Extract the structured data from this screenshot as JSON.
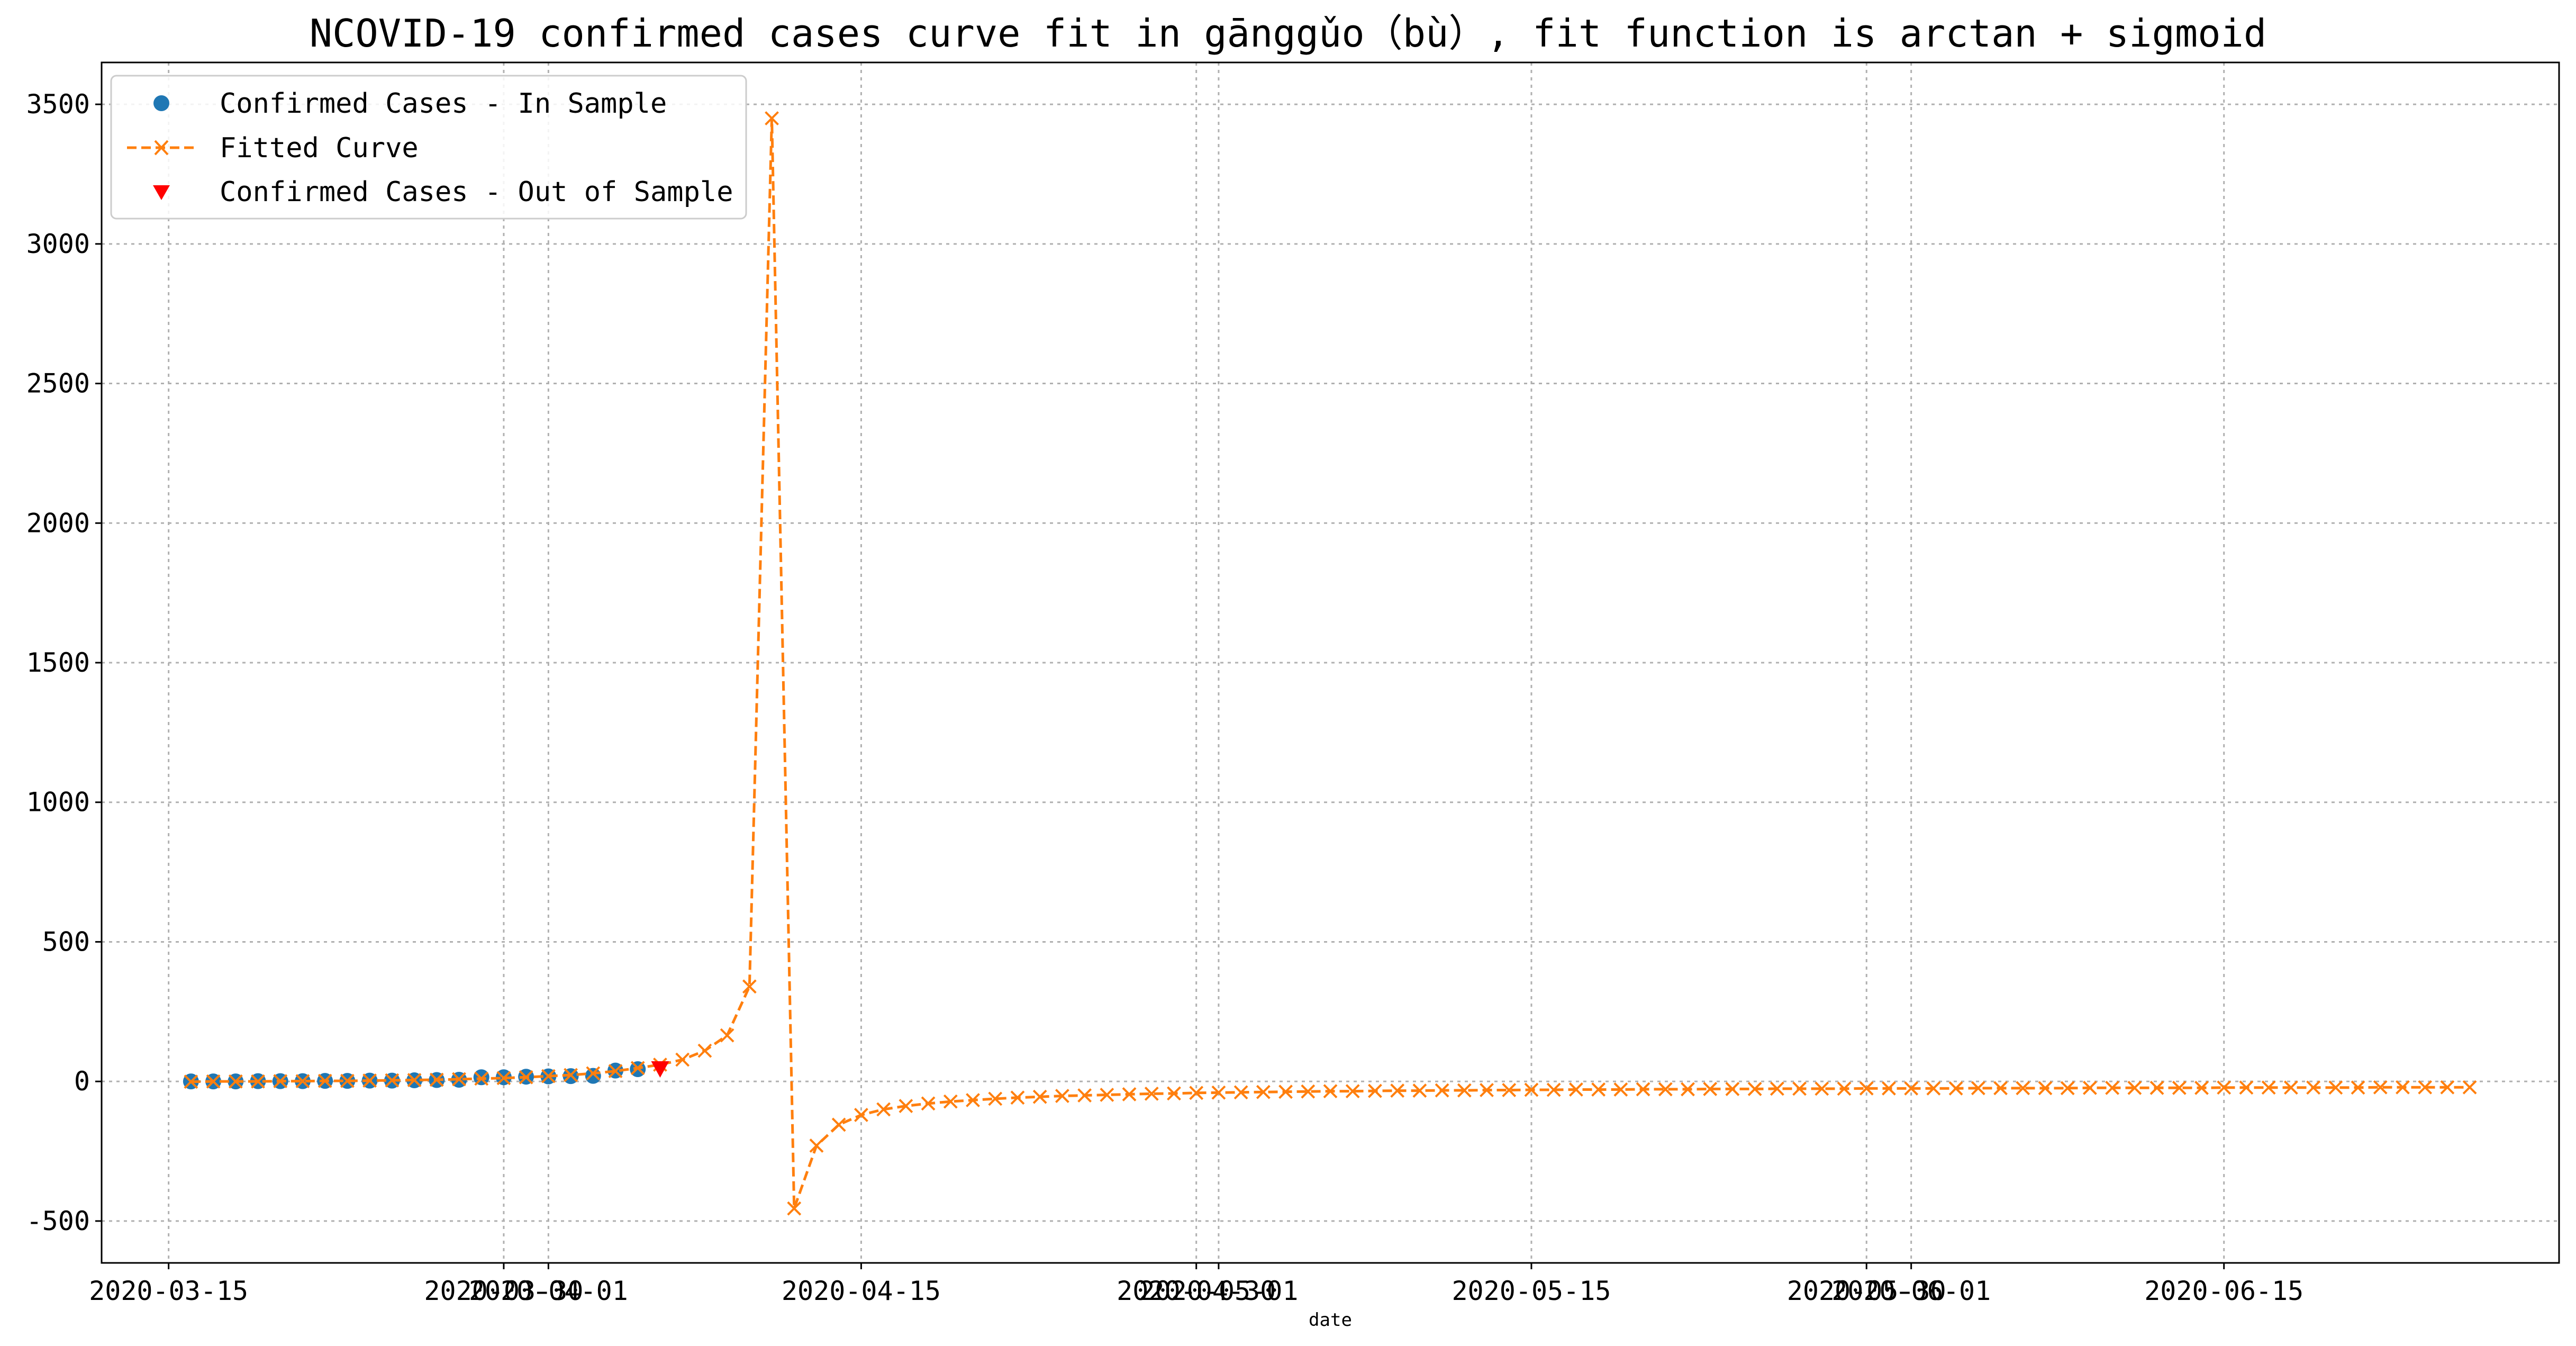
{
  "chart_data": {
    "type": "line",
    "title": "NCOVID-19 confirmed cases curve fit in gānggǔo（bù）, fit function is arctan + sigmoid",
    "xlabel": "date",
    "ylabel": "",
    "x_axis_type": "date",
    "xlim": [
      "2020-03-12",
      "2020-06-30"
    ],
    "ylim": [
      -650,
      3650
    ],
    "grid": true,
    "legend_position": "top-left",
    "y_ticks": [
      -500,
      0,
      500,
      1000,
      1500,
      2000,
      2500,
      3000,
      3500
    ],
    "x_ticks": [
      {
        "date": "2020-03-15",
        "label": "2020-03-15"
      },
      {
        "date": "2020-03-30",
        "label": "2020-03-30"
      },
      {
        "date": "2020-04-01",
        "label": "2020-04-01"
      },
      {
        "date": "2020-04-15",
        "label": "2020-04-15"
      },
      {
        "date": "2020-04-30",
        "label": "2020-04-30"
      },
      {
        "date": "2020-05-01",
        "label": "2020-05-01"
      },
      {
        "date": "2020-05-15",
        "label": "2020-05-15"
      },
      {
        "date": "2020-05-30",
        "label": "2020-05-30"
      },
      {
        "date": "2020-06-01",
        "label": "2020-06-01"
      },
      {
        "date": "2020-06-15",
        "label": "2020-06-15"
      }
    ],
    "series": [
      {
        "name": "Confirmed Cases - In Sample",
        "style": "circle-marker",
        "color": "#1f77b4",
        "points": [
          [
            "2020-03-16",
            0
          ],
          [
            "2020-03-17",
            0
          ],
          [
            "2020-03-18",
            0
          ],
          [
            "2020-03-19",
            1
          ],
          [
            "2020-03-20",
            1
          ],
          [
            "2020-03-21",
            1
          ],
          [
            "2020-03-22",
            2
          ],
          [
            "2020-03-23",
            2
          ],
          [
            "2020-03-24",
            3
          ],
          [
            "2020-03-25",
            3
          ],
          [
            "2020-03-26",
            4
          ],
          [
            "2020-03-27",
            5
          ],
          [
            "2020-03-28",
            6
          ],
          [
            "2020-03-29",
            15
          ],
          [
            "2020-03-30",
            15
          ],
          [
            "2020-03-31",
            17
          ],
          [
            "2020-04-01",
            18
          ],
          [
            "2020-04-02",
            19
          ],
          [
            "2020-04-03",
            20
          ],
          [
            "2020-04-04",
            39
          ],
          [
            "2020-04-05",
            44
          ]
        ]
      },
      {
        "name": "Fitted Curve",
        "style": "dashed-line-x-marker",
        "color": "#ff7f0e",
        "points": [
          [
            "2020-03-16",
            -1
          ],
          [
            "2020-03-17",
            0
          ],
          [
            "2020-03-18",
            0
          ],
          [
            "2020-03-19",
            0
          ],
          [
            "2020-03-20",
            1
          ],
          [
            "2020-03-21",
            1
          ],
          [
            "2020-03-22",
            2
          ],
          [
            "2020-03-23",
            2
          ],
          [
            "2020-03-24",
            3
          ],
          [
            "2020-03-25",
            4
          ],
          [
            "2020-03-26",
            5
          ],
          [
            "2020-03-27",
            6
          ],
          [
            "2020-03-28",
            8
          ],
          [
            "2020-03-29",
            10
          ],
          [
            "2020-03-30",
            12
          ],
          [
            "2020-03-31",
            15
          ],
          [
            "2020-04-01",
            19
          ],
          [
            "2020-04-02",
            23
          ],
          [
            "2020-04-03",
            29
          ],
          [
            "2020-04-04",
            37
          ],
          [
            "2020-04-05",
            48
          ],
          [
            "2020-04-06",
            60
          ],
          [
            "2020-04-07",
            78
          ],
          [
            "2020-04-08",
            110
          ],
          [
            "2020-04-09",
            165
          ],
          [
            "2020-04-10",
            340
          ],
          [
            "2020-04-11",
            3450
          ],
          [
            "2020-04-12",
            -455
          ],
          [
            "2020-04-13",
            -230
          ],
          [
            "2020-04-14",
            -155
          ],
          [
            "2020-04-15",
            -120
          ],
          [
            "2020-04-16",
            -100
          ],
          [
            "2020-04-17",
            -88
          ],
          [
            "2020-04-18",
            -79
          ],
          [
            "2020-04-19",
            -72
          ],
          [
            "2020-04-20",
            -67
          ],
          [
            "2020-04-21",
            -62
          ],
          [
            "2020-04-22",
            -58
          ],
          [
            "2020-04-23",
            -55
          ],
          [
            "2020-04-24",
            -52
          ],
          [
            "2020-04-25",
            -50
          ],
          [
            "2020-04-26",
            -48
          ],
          [
            "2020-04-27",
            -46
          ],
          [
            "2020-04-28",
            -44
          ],
          [
            "2020-04-29",
            -43
          ],
          [
            "2020-04-30",
            -41
          ],
          [
            "2020-05-01",
            -40
          ],
          [
            "2020-05-02",
            -39
          ],
          [
            "2020-05-03",
            -38
          ],
          [
            "2020-05-04",
            -37
          ],
          [
            "2020-05-05",
            -36
          ],
          [
            "2020-05-06",
            -35
          ],
          [
            "2020-05-07",
            -35
          ],
          [
            "2020-05-08",
            -34
          ],
          [
            "2020-05-09",
            -33
          ],
          [
            "2020-05-10",
            -33
          ],
          [
            "2020-05-11",
            -32
          ],
          [
            "2020-05-12",
            -32
          ],
          [
            "2020-05-13",
            -31
          ],
          [
            "2020-05-14",
            -31
          ],
          [
            "2020-05-15",
            -30
          ],
          [
            "2020-05-16",
            -30
          ],
          [
            "2020-05-17",
            -29
          ],
          [
            "2020-05-18",
            -29
          ],
          [
            "2020-05-19",
            -29
          ],
          [
            "2020-05-20",
            -28
          ],
          [
            "2020-05-21",
            -28
          ],
          [
            "2020-05-22",
            -28
          ],
          [
            "2020-05-23",
            -27
          ],
          [
            "2020-05-24",
            -27
          ],
          [
            "2020-05-25",
            -27
          ],
          [
            "2020-05-26",
            -26
          ],
          [
            "2020-05-27",
            -26
          ],
          [
            "2020-05-28",
            -26
          ],
          [
            "2020-05-29",
            -26
          ],
          [
            "2020-05-30",
            -25
          ],
          [
            "2020-05-31",
            -25
          ],
          [
            "2020-06-01",
            -25
          ],
          [
            "2020-06-02",
            -25
          ],
          [
            "2020-06-03",
            -25
          ],
          [
            "2020-06-04",
            -24
          ],
          [
            "2020-06-05",
            -24
          ],
          [
            "2020-06-06",
            -24
          ],
          [
            "2020-06-07",
            -24
          ],
          [
            "2020-06-08",
            -24
          ],
          [
            "2020-06-09",
            -23
          ],
          [
            "2020-06-10",
            -23
          ],
          [
            "2020-06-11",
            -23
          ],
          [
            "2020-06-12",
            -23
          ],
          [
            "2020-06-13",
            -23
          ],
          [
            "2020-06-14",
            -23
          ],
          [
            "2020-06-15",
            -22
          ],
          [
            "2020-06-16",
            -22
          ],
          [
            "2020-06-17",
            -22
          ],
          [
            "2020-06-18",
            -22
          ],
          [
            "2020-06-19",
            -22
          ],
          [
            "2020-06-20",
            -22
          ],
          [
            "2020-06-21",
            -22
          ],
          [
            "2020-06-22",
            -21
          ],
          [
            "2020-06-23",
            -21
          ],
          [
            "2020-06-24",
            -21
          ],
          [
            "2020-06-25",
            -21
          ],
          [
            "2020-06-26",
            -21
          ]
        ]
      },
      {
        "name": "Confirmed Cases - Out of Sample",
        "style": "triangle-down-marker",
        "color": "#ff0000",
        "points": [
          [
            "2020-04-06",
            44
          ]
        ]
      }
    ]
  }
}
